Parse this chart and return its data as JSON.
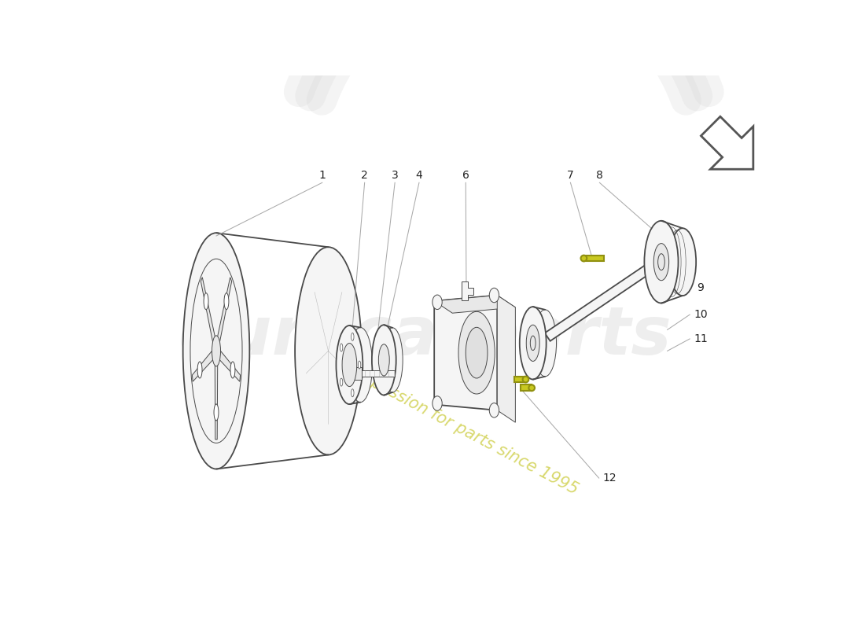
{
  "bg_color": "#ffffff",
  "line_color": "#4a4a4a",
  "line_color_light": "#888888",
  "label_color": "#222222",
  "leader_color": "#aaaaaa",
  "watermark_color": "#c8c830",
  "watermark_text": "a passion for parts since 1995",
  "bg_logo_color": "#d8d8d8",
  "yellow_part_color": "#c8c820",
  "yellow_edge_color": "#909010",
  "part_fill": "#f5f5f5",
  "part_fill_dark": "#e8e8e8",
  "lw_main": 1.3,
  "lw_thin": 0.7,
  "lw_leader": 0.75
}
